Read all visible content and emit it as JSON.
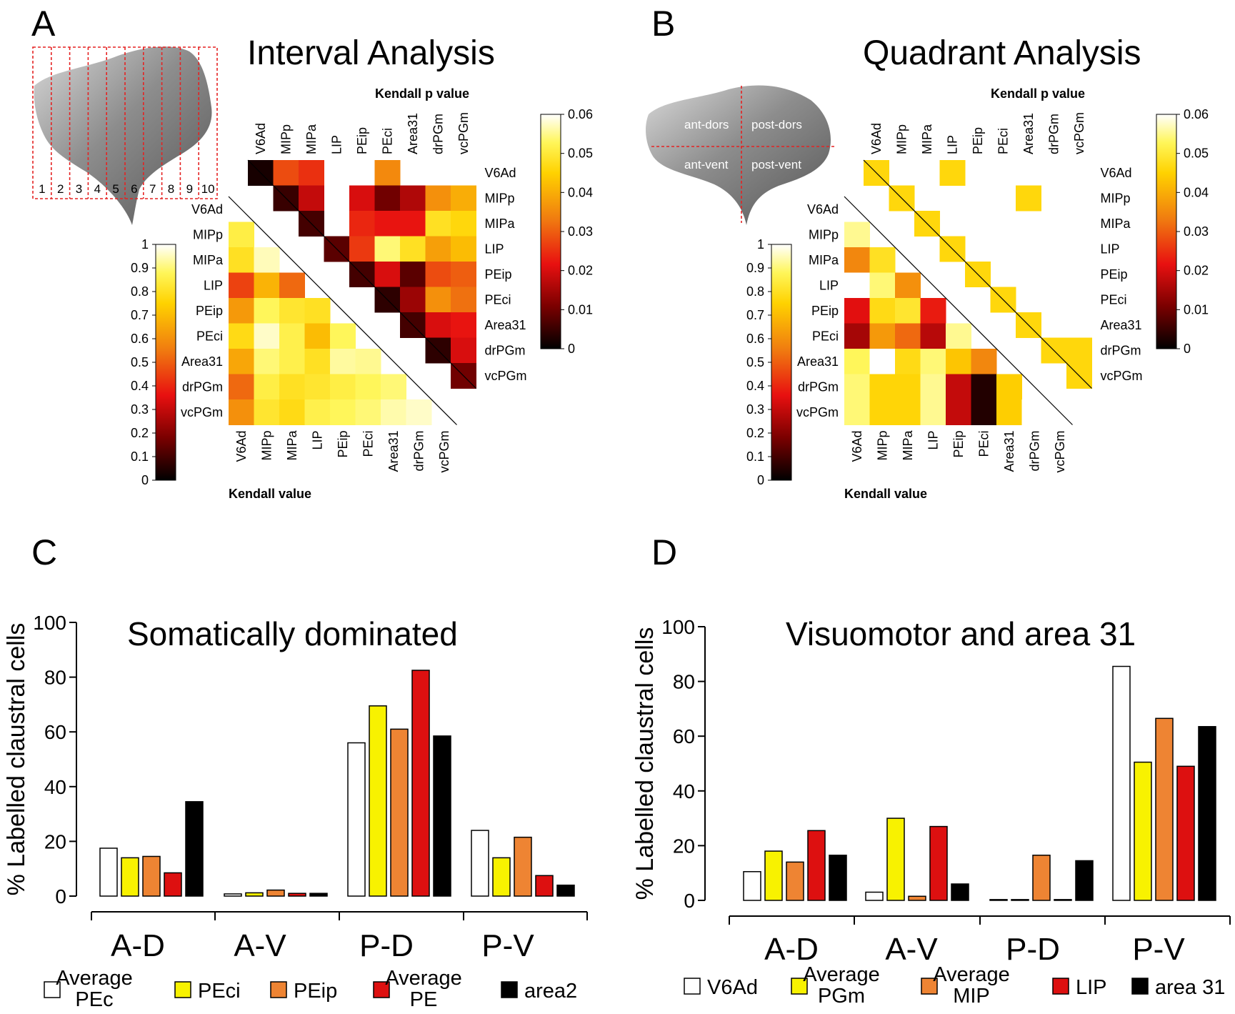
{
  "colors": {
    "white": "#ffffff",
    "yellow": "#f8f200",
    "orange": "#ee8433",
    "red": "#dd1010",
    "black": "#000000",
    "grid_red": "#e52222",
    "surface": "#8a8a8a"
  },
  "panels": {
    "A": {
      "letter": "A",
      "title": "Interval Analysis",
      "interval_numbers": [
        "1",
        "2",
        "3",
        "4",
        "5",
        "6",
        "7",
        "8",
        "9",
        "10"
      ],
      "upper_label": "Kendall p value",
      "lower_label": "Kendall value"
    },
    "B": {
      "letter": "B",
      "title": "Quadrant Analysis",
      "quadrants": [
        "ant-dors",
        "post-dors",
        "ant-vent",
        "post-vent"
      ],
      "upper_label": "Kendall p value",
      "lower_label": "Kendall value"
    },
    "C": {
      "letter": "C",
      "title": "Somatically dominated",
      "legend": [
        "Average PEc",
        "PEci",
        "PEip",
        "Average PE",
        "area2"
      ]
    },
    "D": {
      "letter": "D",
      "title": "Visuomotor and area 31",
      "legend": [
        "V6Ad",
        "Average PGm",
        "Average MIP",
        "LIP",
        "area 31"
      ]
    }
  },
  "chart_data": [
    {
      "id": "A",
      "type": "heatmap",
      "title": "Interval Analysis",
      "areas": [
        "V6Ad",
        "MIPp",
        "MIPa",
        "LIP",
        "PEip",
        "PEci",
        "Area31",
        "drPGm",
        "vcPGm"
      ],
      "upper": {
        "label": "Kendall p value",
        "colorbar_ticks": [
          "0",
          "0.01",
          "0.02",
          "0.03",
          "0.04",
          "0.05",
          "0.06"
        ],
        "range": [
          0,
          0.06
        ],
        "pvalues": [
          [
            0.002,
            0.028,
            0.025,
            null,
            null,
            0.035,
            null,
            null,
            null
          ],
          [
            0.005,
            0.018,
            null,
            0.02,
            0.01,
            0.016,
            0.036,
            0.04
          ],
          [
            0.006,
            null,
            0.024,
            0.022,
            0.022,
            0.048,
            0.046
          ],
          [
            0.008,
            0.026,
            0.054,
            0.048,
            0.038,
            0.042
          ],
          [
            0.006,
            0.02,
            0.008,
            0.028,
            0.03
          ],
          [
            0.004,
            0.014,
            0.036,
            0.032
          ],
          [
            0.006,
            0.02,
            0.022
          ],
          [
            0.004,
            0.02
          ],
          [
            0.01
          ]
        ]
      },
      "lower": {
        "label": "Kendall value",
        "colorbar_ticks": [
          "0",
          "0.1",
          "0.2",
          "0.3",
          "0.4",
          "0.5",
          "0.6",
          "0.7",
          "0.8",
          "0.9",
          "1"
        ],
        "range": [
          0,
          1
        ],
        "values": [
          [
            0.85
          ],
          [
            0.8,
            0.95
          ],
          [
            0.45,
            0.68,
            0.52
          ],
          [
            0.62,
            0.88,
            0.82,
            0.8
          ],
          [
            0.78,
            0.96,
            0.86,
            0.7,
            0.88
          ],
          [
            0.65,
            0.9,
            0.86,
            0.8,
            0.93,
            0.92
          ],
          [
            0.52,
            0.85,
            0.8,
            0.82,
            0.85,
            0.88,
            0.9
          ],
          [
            0.6,
            0.82,
            0.78,
            0.86,
            0.88,
            0.9,
            0.94,
            0.96
          ]
        ]
      }
    },
    {
      "id": "B",
      "type": "heatmap",
      "title": "Quadrant Analysis",
      "areas": [
        "V6Ad",
        "MIPp",
        "MIPa",
        "LIP",
        "PEip",
        "PEci",
        "Area31",
        "drPGm",
        "vcPGm"
      ],
      "upper": {
        "label": "Kendall p value",
        "colorbar_ticks": [
          "0",
          "0.01",
          "0.02",
          "0.03",
          "0.04",
          "0.05",
          "0.06"
        ],
        "range": [
          0,
          0.06
        ],
        "pvalues": [
          [
            0.046,
            null,
            null,
            0.046,
            null,
            null,
            null,
            null,
            null
          ],
          [
            0.046,
            null,
            null,
            null,
            null,
            0.046,
            null,
            null
          ],
          [
            0.046,
            null,
            null,
            null,
            null,
            null,
            null
          ],
          [
            0.046,
            null,
            null,
            null,
            null,
            null
          ],
          [
            0.046,
            null,
            null,
            null,
            null
          ],
          [
            0.046,
            null,
            null,
            null
          ],
          [
            0.046,
            null,
            null
          ],
          [
            0.046,
            0.046
          ],
          [
            0.046
          ]
        ]
      },
      "lower": {
        "label": "Kendall value",
        "colorbar_ticks": [
          "0",
          "0.1",
          "0.2",
          "0.3",
          "0.4",
          "0.5",
          "0.6",
          "0.7",
          "0.8",
          "0.9",
          "1"
        ],
        "range": [
          0,
          1
        ],
        "values": [
          [
            0.92
          ],
          [
            0.58,
            0.8
          ],
          [
            1.0,
            0.9,
            0.6
          ],
          [
            0.35,
            0.78,
            0.82,
            0.38
          ],
          [
            0.25,
            0.62,
            0.52,
            0.28,
            0.92
          ],
          [
            0.88,
            1.0,
            0.78,
            0.9,
            0.72,
            0.58
          ],
          [
            0.9,
            0.76,
            0.76,
            0.92,
            0.3,
            0.05,
            0.74
          ],
          [
            0.9,
            0.76,
            0.76,
            0.92,
            0.3,
            0.05,
            0.74,
            1.0
          ]
        ]
      }
    },
    {
      "id": "C",
      "type": "bar",
      "title": "Somatically dominated",
      "categories": [
        "A-D",
        "A-V",
        "P-D",
        "P-V"
      ],
      "series": [
        {
          "name": "Average PEc",
          "values": [
            17.5,
            0.8,
            56,
            24
          ]
        },
        {
          "name": "PEci",
          "values": [
            14,
            1.2,
            69.5,
            14
          ]
        },
        {
          "name": "PEip",
          "values": [
            14.5,
            2.2,
            61,
            21.5
          ]
        },
        {
          "name": "Average PE",
          "values": [
            8.5,
            1,
            82.5,
            7.5
          ]
        },
        {
          "name": "area2",
          "values": [
            34.5,
            1,
            58.5,
            4
          ]
        }
      ],
      "ylabel": "% Labelled claustral cells",
      "yticks": [
        "0",
        "20",
        "40",
        "60",
        "80",
        "100"
      ],
      "ylim": [
        0,
        100
      ]
    },
    {
      "id": "D",
      "type": "bar",
      "title": "Visuomotor and area 31",
      "categories": [
        "A-D",
        "A-V",
        "P-D",
        "P-V"
      ],
      "series": [
        {
          "name": "V6Ad",
          "values": [
            10.5,
            3,
            0.3,
            85.5
          ]
        },
        {
          "name": "Average PGm",
          "values": [
            18,
            30,
            0.3,
            50.5
          ]
        },
        {
          "name": "Average MIP",
          "values": [
            14,
            1.5,
            16.5,
            66.5
          ]
        },
        {
          "name": "LIP",
          "values": [
            25.5,
            27,
            0.3,
            49
          ]
        },
        {
          "name": "area 31",
          "values": [
            16.5,
            6,
            14.5,
            63.5
          ]
        }
      ],
      "ylabel": "% Labelled claustral cells",
      "yticks": [
        "0",
        "20",
        "40",
        "60",
        "80",
        "100"
      ],
      "ylim": [
        0,
        100
      ]
    }
  ]
}
